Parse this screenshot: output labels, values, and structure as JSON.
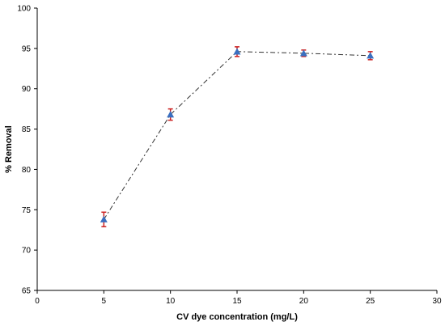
{
  "chart_data": {
    "type": "scatter",
    "title": "",
    "xlabel": "CV dye concentration (mg/L)",
    "ylabel": "% Removal",
    "xlim": [
      0,
      30
    ],
    "ylim": [
      65,
      100
    ],
    "x_ticks": [
      "0",
      "5",
      "10",
      "15",
      "20",
      "25",
      "30"
    ],
    "y_ticks": [
      "65",
      "70",
      "75",
      "80",
      "85",
      "90",
      "95",
      "100"
    ],
    "grid": false,
    "legend": "none",
    "series": [
      {
        "x": [
          5,
          10,
          15,
          20,
          25
        ],
        "y": [
          73.8,
          86.8,
          94.6,
          94.4,
          94.1
        ],
        "error": [
          0.9,
          0.7,
          0.6,
          0.4,
          0.5
        ],
        "marker": "triangle",
        "line_style": "dashed"
      }
    ],
    "colors": {
      "marker": "#3a6fc0",
      "error_bar": "#cc2222",
      "line": "#333333",
      "axis": "#000000"
    }
  }
}
